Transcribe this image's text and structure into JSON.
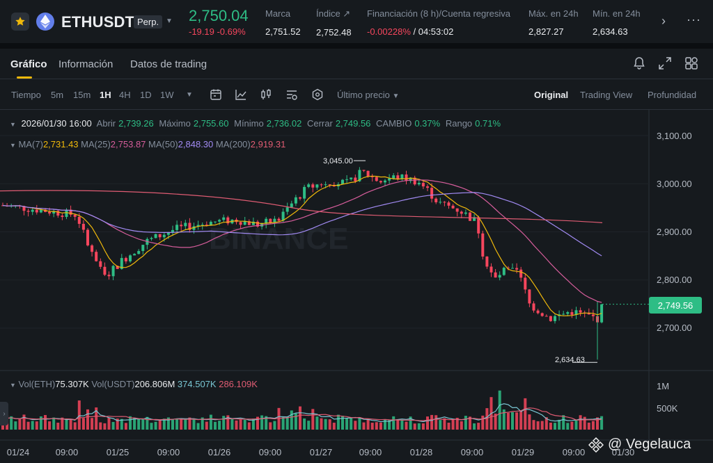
{
  "ticker": {
    "symbol": "ETHUSDT",
    "contract_type": "Perp.",
    "last_price": "2,750.04",
    "change": "-19.19 -0.69%",
    "stats": [
      {
        "label": "Marca",
        "value": "2,751.52"
      },
      {
        "label": "Índice ↗",
        "value": "2,752.48"
      },
      {
        "label": "Financiación (8 h)/Cuenta regresiva",
        "value_neg": "-0.00228%",
        "value_rest": " / 04:53:02"
      },
      {
        "label": "Máx. en 24h",
        "value": "2,827.27"
      },
      {
        "label": "Mín. en 24h",
        "value": "2,634.63"
      }
    ],
    "icons": {
      "favorite": "star-icon",
      "coin": "ethereum-icon",
      "next": "chevron-right-icon",
      "more": "more-horizontal-icon"
    }
  },
  "tabs": [
    {
      "label": "Gráfico",
      "active": true
    },
    {
      "label": "Información",
      "active": false
    },
    {
      "label": "Datos de trading",
      "active": false
    }
  ],
  "tab_icons": [
    "bell-icon",
    "expand-icon",
    "grid-icon"
  ],
  "toolbar": {
    "time_label": "Tiempo",
    "intervals": [
      "5m",
      "15m",
      "1H",
      "4H",
      "1D",
      "1W"
    ],
    "active_interval": "1H",
    "price_type": "Último precio",
    "views": [
      "Original",
      "Trading View",
      "Profundidad"
    ],
    "active_view": "Original"
  },
  "ohlc": {
    "date": "2026/01/30 16:00",
    "open_label": "Abrir",
    "open": "2,739.26",
    "high_label": "Máximo",
    "high": "2,755.60",
    "low_label": "Mínimo",
    "low": "2,736.02",
    "close_label": "Cerrar",
    "close": "2,749.56",
    "change_label": "CAMBIO",
    "change": "0.37%",
    "range_label": "Rango",
    "range": "0.71%"
  },
  "ma": [
    {
      "label": "MA(7)",
      "value": "2,731.43",
      "color": "#f0b90b"
    },
    {
      "label": "MA(25)",
      "value": "2,753.87",
      "color": "#d65d9b"
    },
    {
      "label": "MA(50)",
      "value": "2,848.30",
      "color": "#a28bf4"
    },
    {
      "label": "MA(200)",
      "value": "2,919.31",
      "color": "#e05c73"
    }
  ],
  "volume": {
    "eth_label": "Vol(ETH)",
    "eth": "75.307K",
    "usdt_label": "Vol(USDT)",
    "usdt": "206.806M",
    "ma1": "374.507K",
    "ma2": "286.109K"
  },
  "price_axis": [
    "3,100.00",
    "3,000.00",
    "2,900.00",
    "2,800.00",
    "2,700.00"
  ],
  "volume_axis": [
    "1M",
    "500K"
  ],
  "time_axis": [
    "01/24",
    "09:00",
    "01/25",
    "09:00",
    "01/26",
    "09:00",
    "01/27",
    "09:00",
    "01/28",
    "09:00",
    "01/29",
    "09:00",
    "01/30"
  ],
  "current_price_tag": "2,749.56",
  "high_marker": "3,045.00",
  "low_marker": "2,634.63",
  "chart_watermark": "BINANCE",
  "attribution": "@ Vegelauca",
  "colors": {
    "up": "#2ebd85",
    "down": "#f6465d",
    "accent": "#f0b90b",
    "bg": "#161a1e"
  }
}
